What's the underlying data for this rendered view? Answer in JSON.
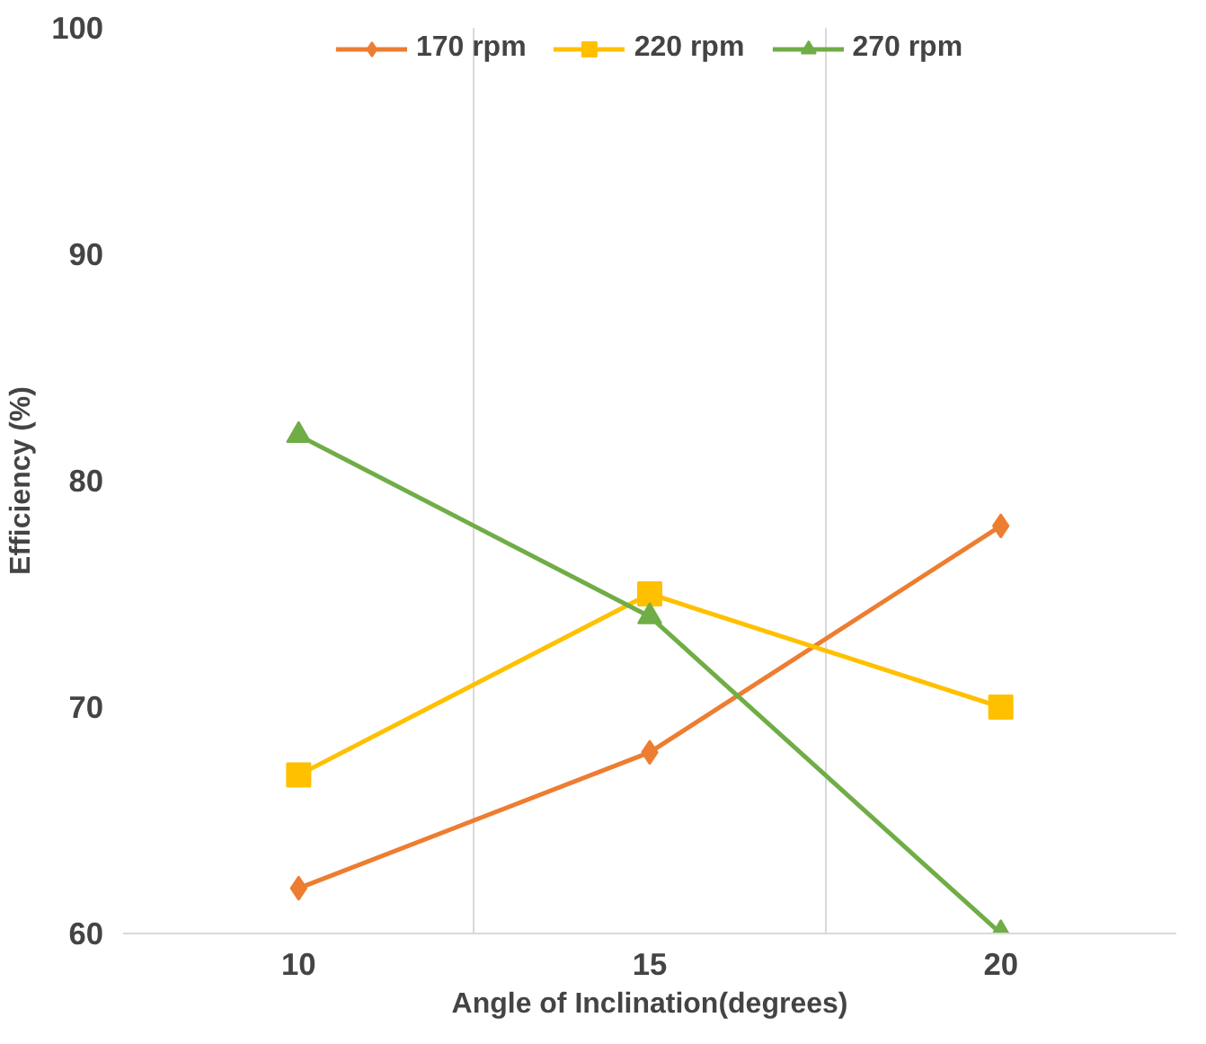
{
  "chart_data": {
    "type": "line",
    "xlabel": "Angle of Inclination(degrees)",
    "ylabel": "Efficiency (%)",
    "categories": [
      "10",
      "15",
      "20"
    ],
    "series": [
      {
        "name": "170 rpm",
        "color": "#ed7d31",
        "marker": "diamond",
        "values": [
          62,
          68,
          78
        ]
      },
      {
        "name": "220 rpm",
        "color": "#ffc000",
        "marker": "square",
        "values": [
          67,
          75,
          70
        ]
      },
      {
        "name": "270 rpm",
        "color": "#70ad47",
        "marker": "triangle",
        "values": [
          82,
          74,
          60
        ]
      }
    ],
    "ylim": [
      60,
      100
    ],
    "yticks": [
      60,
      70,
      80,
      90,
      100
    ],
    "grid": "x",
    "legend": "top"
  }
}
